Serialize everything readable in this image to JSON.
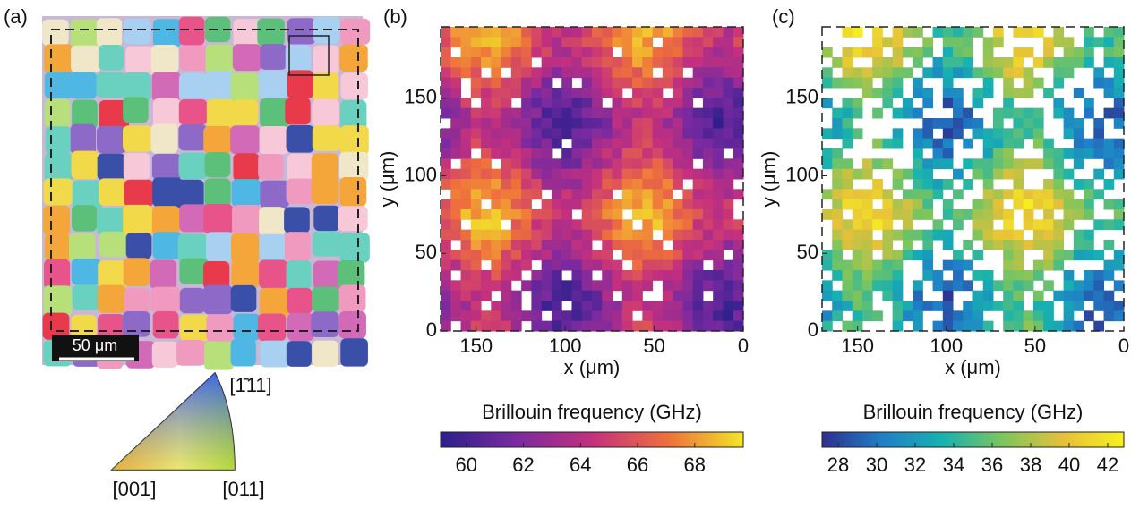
{
  "panels": {
    "a": {
      "label": "(a)",
      "scalebar": "50 μm",
      "ipf": [
        "[001]",
        "[011]",
        "[1̄11]"
      ]
    },
    "b": {
      "label": "(b)",
      "xlabel": "x (μm)",
      "ylabel": "y (μm)",
      "xlim": [
        170,
        0
      ],
      "ylim": [
        0,
        196
      ],
      "xticks": [
        150,
        100,
        50,
        0
      ],
      "yticks": [
        0,
        50,
        100,
        150
      ],
      "colorbar": {
        "label": "Brillouin frequency (GHz)",
        "lim": [
          59.1,
          69.7
        ],
        "ticks": [
          60,
          62,
          64,
          66,
          68
        ],
        "colors": [
          "#2c1f8c",
          "#7a2aa0",
          "#c4307e",
          "#ef6f3c",
          "#f2e52a"
        ]
      }
    },
    "c": {
      "label": "(c)",
      "xlabel": "x (μm)",
      "ylabel": "y (μm)",
      "xlim": [
        170,
        0
      ],
      "ylim": [
        0,
        196
      ],
      "xticks": [
        150,
        100,
        50,
        0
      ],
      "yticks": [
        0,
        50,
        100,
        150
      ],
      "colorbar": {
        "label": "Brillouin frequency (GHz)",
        "lim": [
          27.16,
          42.84
        ],
        "ticks": [
          28,
          30,
          32,
          34,
          36,
          38,
          40,
          42
        ],
        "colors": [
          "#2e2f8f",
          "#1f80c8",
          "#17b2b0",
          "#7ec55c",
          "#e6c03a",
          "#f7f020"
        ]
      }
    }
  }
}
